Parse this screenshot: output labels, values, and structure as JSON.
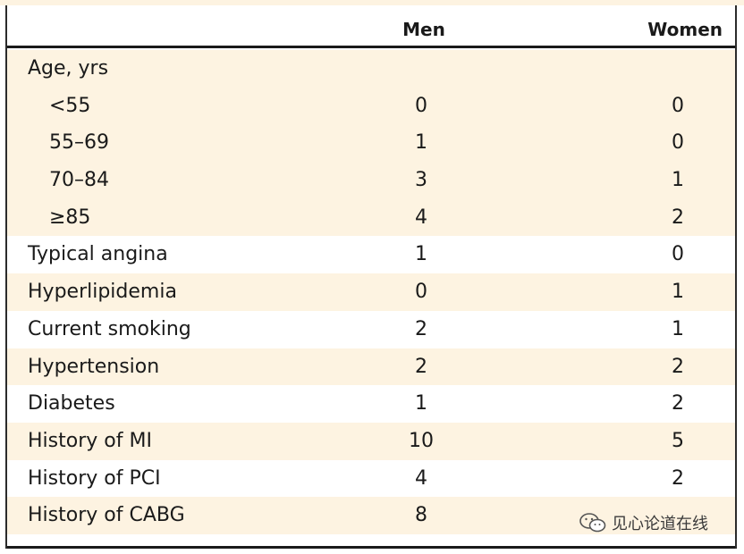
{
  "header": {
    "men_label": "Men",
    "women_label": "Women"
  },
  "rows": [
    {
      "label": "Age, yrs",
      "men": "",
      "women": "",
      "shaded": true,
      "indent": false
    },
    {
      "label": "<55",
      "men": "0",
      "women": "0",
      "shaded": true,
      "indent": true
    },
    {
      "label": "55–69",
      "men": "1",
      "women": "0",
      "shaded": true,
      "indent": true
    },
    {
      "label": "70–84",
      "men": "3",
      "women": "1",
      "shaded": true,
      "indent": true
    },
    {
      "label": "≥85",
      "men": "4",
      "women": "2",
      "shaded": true,
      "indent": true
    },
    {
      "label": "Typical angina",
      "men": "1",
      "women": "0",
      "shaded": false,
      "indent": false
    },
    {
      "label": "Hyperlipidemia",
      "men": "0",
      "women": "1",
      "shaded": true,
      "indent": false
    },
    {
      "label": "Current smoking",
      "men": "2",
      "women": "1",
      "shaded": false,
      "indent": false
    },
    {
      "label": "Hypertension",
      "men": "2",
      "women": "2",
      "shaded": true,
      "indent": false
    },
    {
      "label": "Diabetes",
      "men": "1",
      "women": "2",
      "shaded": false,
      "indent": false
    },
    {
      "label": "History of MI",
      "men": "10",
      "women": "5",
      "shaded": true,
      "indent": false
    },
    {
      "label": "History of PCI",
      "men": "4",
      "women": "2",
      "shaded": false,
      "indent": false
    },
    {
      "label": "History of CABG",
      "men": "8",
      "women": "",
      "shaded": true,
      "indent": false
    }
  ],
  "watermark": {
    "text": "见心论道在线",
    "icon": "wechat-icon"
  },
  "colors": {
    "shaded_row": "#fdf3e1",
    "rule": "#1a1a1a"
  }
}
